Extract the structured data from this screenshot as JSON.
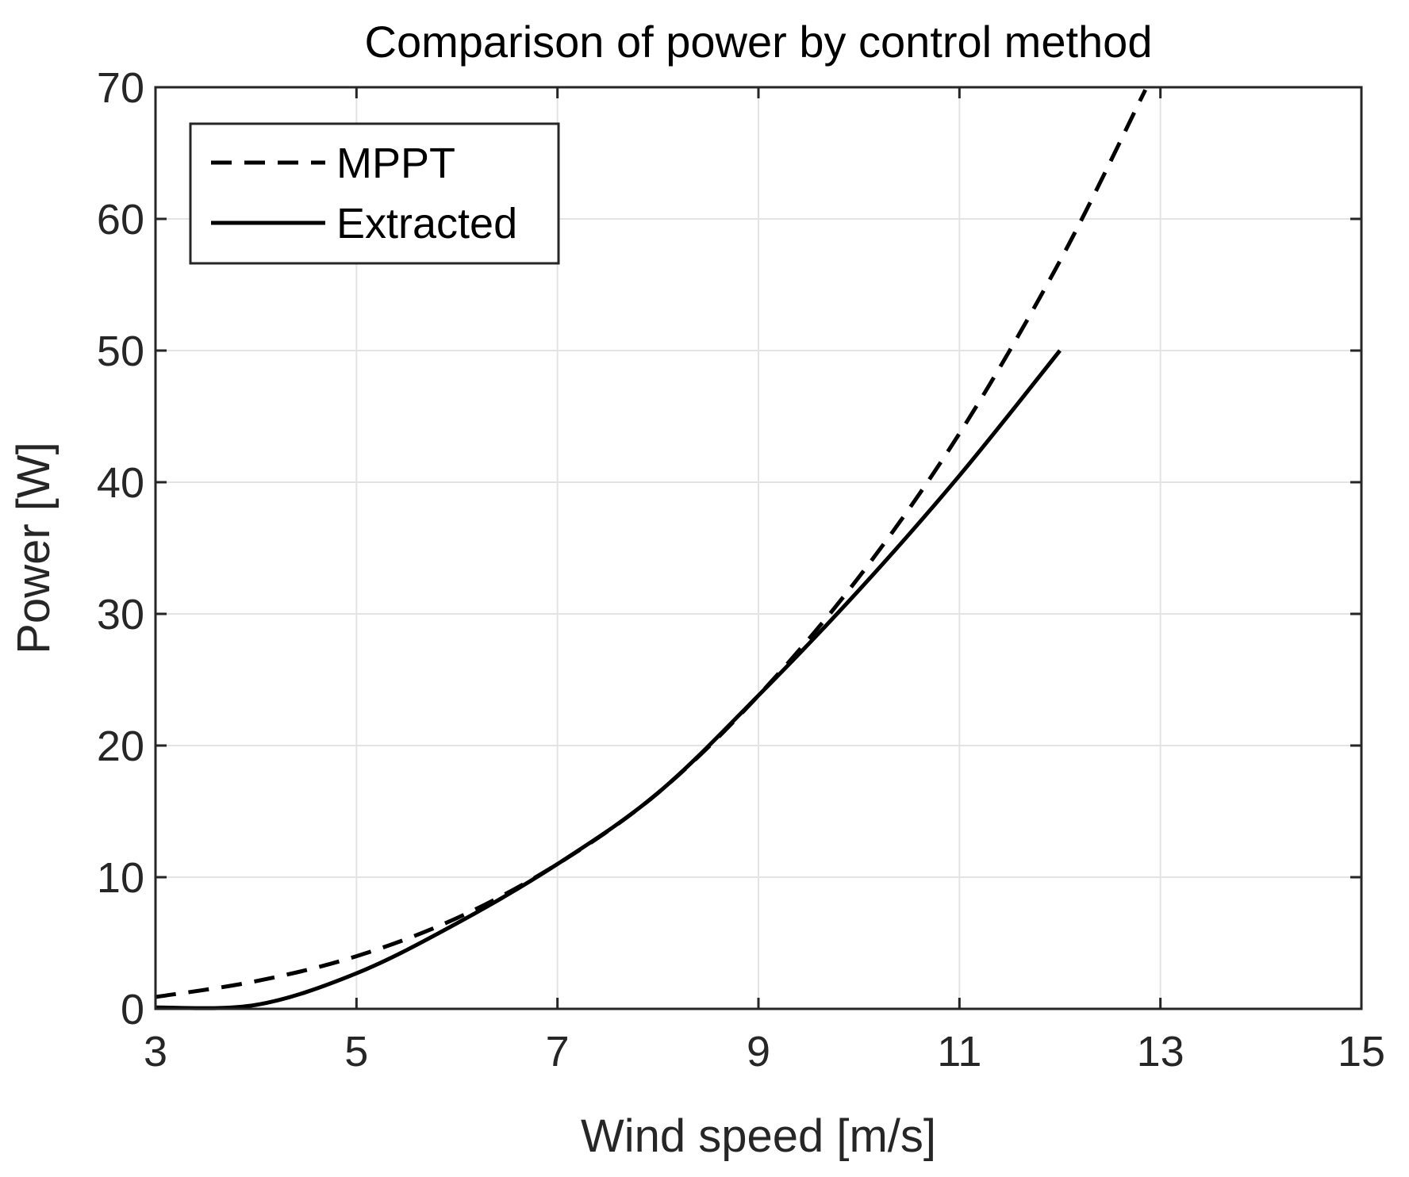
{
  "chart_data": {
    "type": "line",
    "title": "Comparison of power by control method",
    "xlabel": "Wind speed [m/s]",
    "ylabel": "Power [W]",
    "xlim": [
      3,
      15
    ],
    "ylim": [
      0,
      70
    ],
    "xticks": [
      3,
      5,
      7,
      9,
      11,
      13,
      15
    ],
    "yticks": [
      0,
      10,
      20,
      30,
      40,
      50,
      60,
      70
    ],
    "grid": true,
    "legend_position": "top-left",
    "series": [
      {
        "name": "MPPT",
        "style": "dashed",
        "color": "#000000",
        "x": [
          3,
          4,
          5,
          6,
          7,
          8,
          9,
          10,
          11,
          12,
          12.85
        ],
        "y": [
          0.9,
          2.1,
          4.0,
          6.9,
          11.0,
          16.4,
          23.8,
          32.8,
          43.7,
          56.8,
          69.8
        ]
      },
      {
        "name": "Extracted",
        "style": "solid",
        "color": "#000000",
        "x": [
          3,
          4,
          5,
          6,
          7,
          8,
          9,
          10,
          11,
          12
        ],
        "y": [
          0.1,
          0.3,
          2.7,
          6.5,
          11.0,
          16.4,
          23.8,
          31.8,
          40.5,
          50.0
        ]
      }
    ]
  }
}
